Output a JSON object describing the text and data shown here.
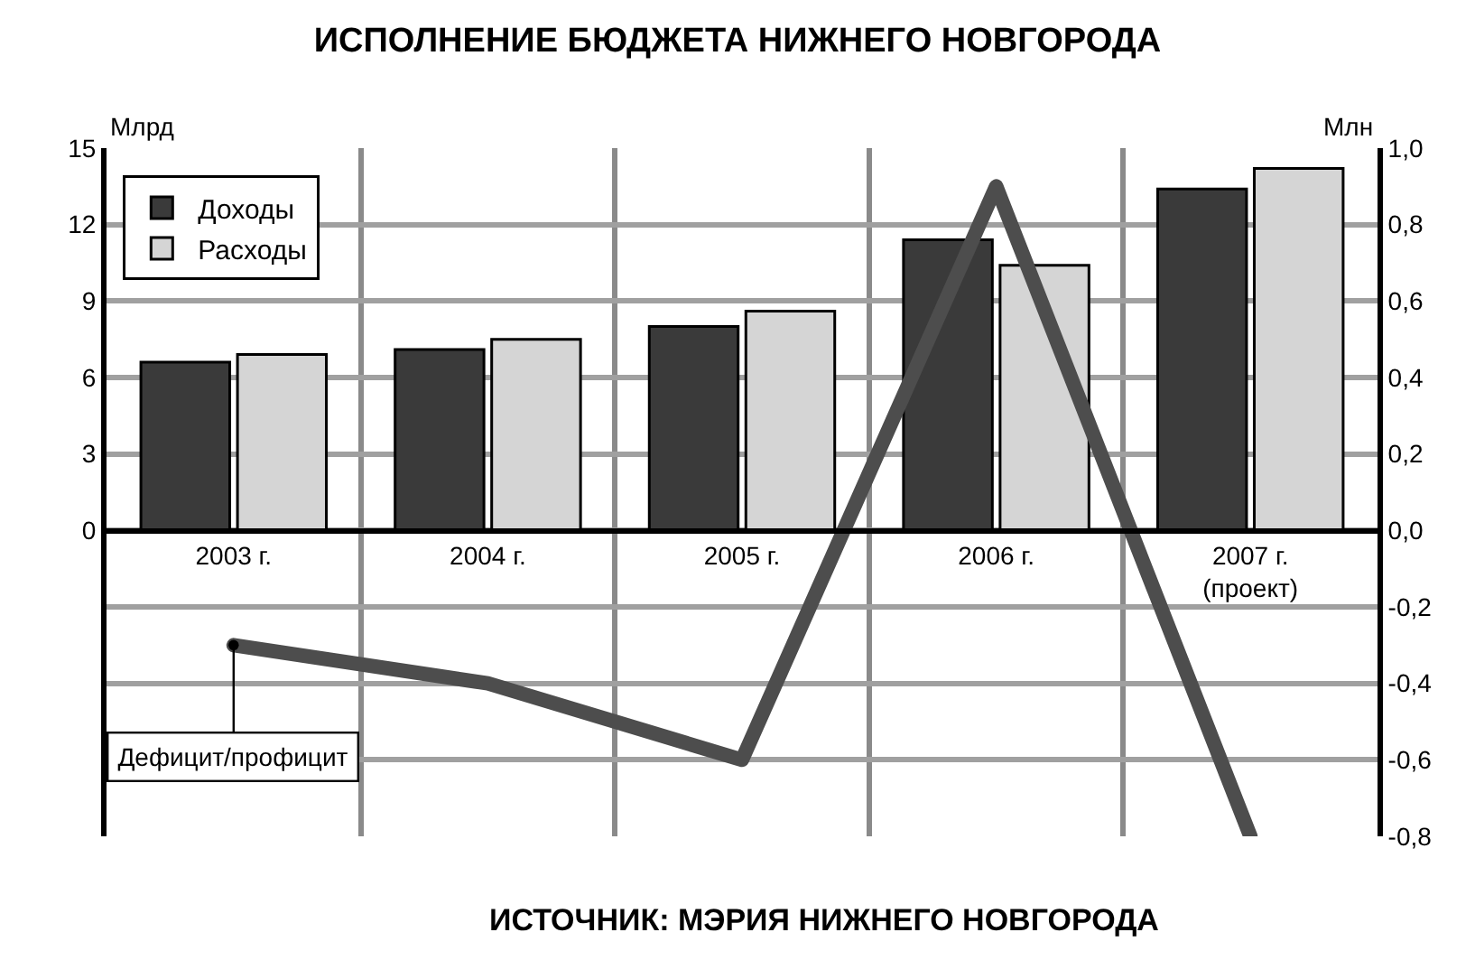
{
  "chart_data": {
    "type": "bar",
    "title": "ИСПОЛНЕНИЕ БЮДЖЕТА НИЖНЕГО НОВГОРОДА",
    "ylabel": "Млрд",
    "y2label": "Млн",
    "categories": [
      "2003 г.",
      "2004 г.",
      "2005 г.",
      "2006 г.",
      "2007 г.\n(проект)"
    ],
    "series": [
      {
        "name": "Доходы",
        "color": "#3a3a3a",
        "values": [
          6.6,
          7.1,
          8.0,
          11.4,
          13.4
        ]
      },
      {
        "name": "Расходы",
        "color": "#d5d5d5",
        "values": [
          6.9,
          7.5,
          8.6,
          10.4,
          14.2
        ]
      },
      {
        "name": "Дефицит/профицит",
        "type": "line",
        "axis": "y2",
        "color": "#4d4d4d",
        "values": [
          -0.3,
          -0.4,
          -0.6,
          0.9,
          -0.8
        ]
      }
    ],
    "ylim": [
      -12,
      15
    ],
    "yticks": [
      0,
      3,
      6,
      9,
      12,
      15
    ],
    "y2lim": [
      -0.8,
      1.0
    ],
    "y2ticks": [
      {
        "value": 1.0,
        "label": "1,0"
      },
      {
        "value": 0.8,
        "label": "0,8"
      },
      {
        "value": 0.6,
        "label": "0,6"
      },
      {
        "value": 0.4,
        "label": "0,4"
      },
      {
        "value": 0.2,
        "label": "0,2"
      },
      {
        "value": 0.0,
        "label": "0,0"
      },
      {
        "value": -0.2,
        "label": "-0,2"
      },
      {
        "value": -0.4,
        "label": "-0,4"
      },
      {
        "value": -0.6,
        "label": "-0,6"
      },
      {
        "value": -0.8,
        "label": "-0,8"
      }
    ],
    "grid": true,
    "legend": "top left",
    "marker": "none",
    "annotations": [
      "ИСТОЧНИК: МЭРИЯ НИЖНЕГО НОВГОРОДА"
    ]
  }
}
